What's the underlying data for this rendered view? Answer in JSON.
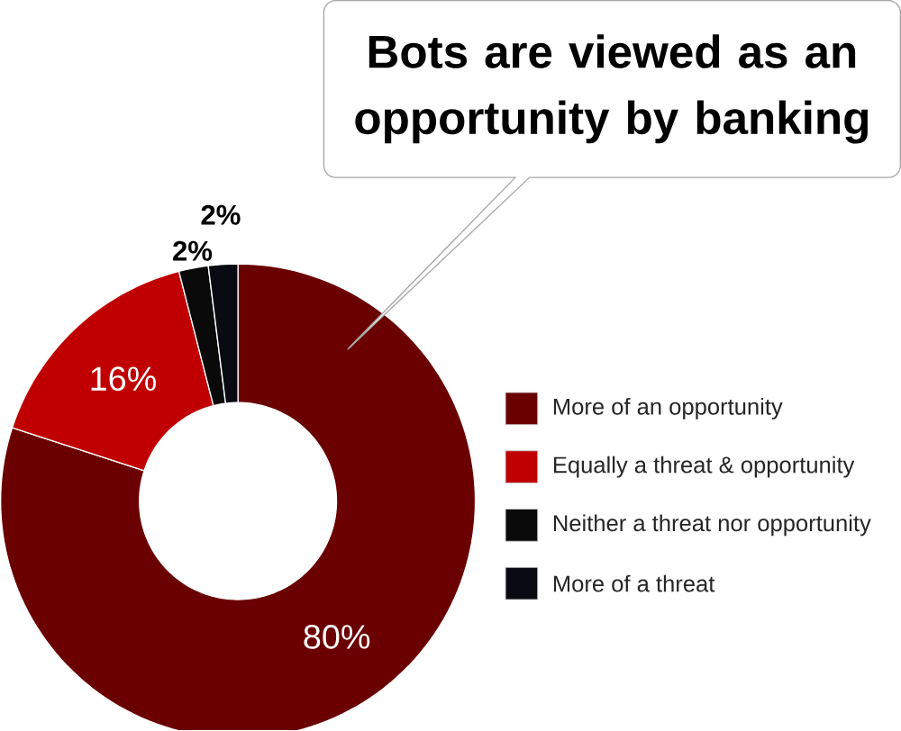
{
  "chart_data": {
    "type": "donut",
    "title": "Bots are viewed as an opportunity by banking",
    "categories": [
      "More of an opportunity",
      "Equally a threat & opportunity",
      "Neither a threat nor opportunity",
      "More of a threat"
    ],
    "values": [
      80,
      16,
      2,
      2
    ],
    "value_labels": [
      "80%",
      "16%",
      "2%",
      "2%"
    ],
    "colors": [
      "#6b0000",
      "#c00000",
      "#0a0a0a",
      "#0a0a12"
    ],
    "legend": "right"
  }
}
